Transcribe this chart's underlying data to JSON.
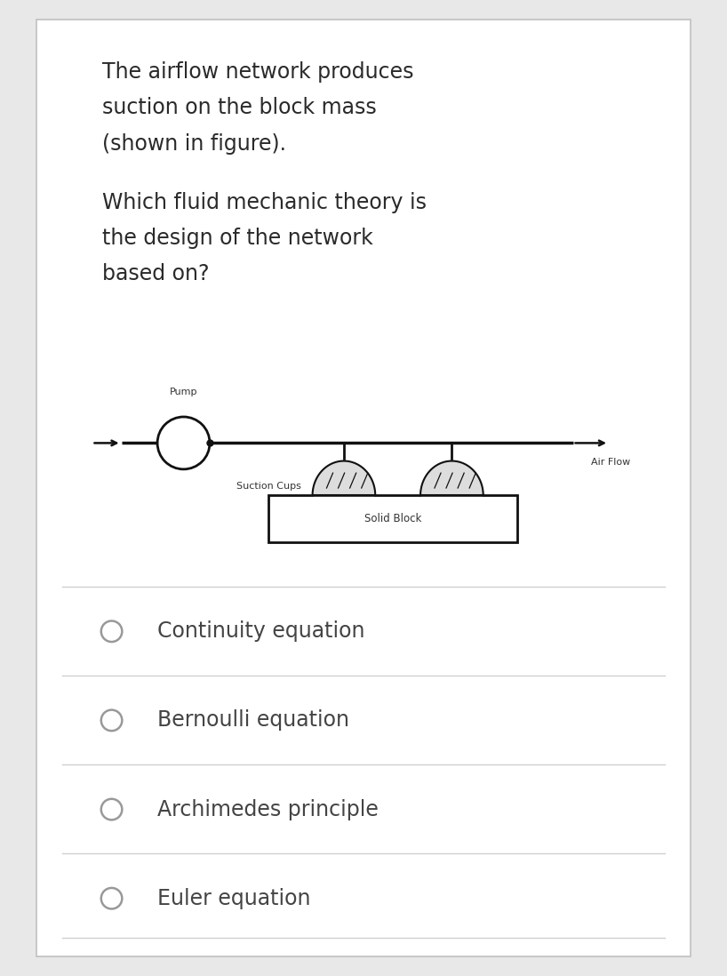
{
  "bg_color": "#e8e8e8",
  "card_color": "#ffffff",
  "card_border_color": "#c0c0c0",
  "question_lines_para1": [
    "The airflow network produces",
    "suction on the block mass",
    "(shown in figure)."
  ],
  "question_lines_para2": [
    "Which fluid mechanic theory is",
    "the design of the network",
    "based on?"
  ],
  "label_pump": "Pump",
  "label_airflow": "Air Flow",
  "label_suction": "Suction Cups",
  "label_block": "Solid Block",
  "options": [
    "Continuity equation",
    "Bernoulli equation",
    "Archimedes principle",
    "Euler equation"
  ],
  "text_color": "#2a2a2a",
  "option_text_color": "#444444",
  "sep_line_color": "#d0d0d0",
  "diagram_color": "#111111",
  "diagram_label_color": "#333333",
  "text_fontsize": 17,
  "option_fontsize": 17,
  "diagram_label_fontsize": 8,
  "radio_color": "#999999"
}
